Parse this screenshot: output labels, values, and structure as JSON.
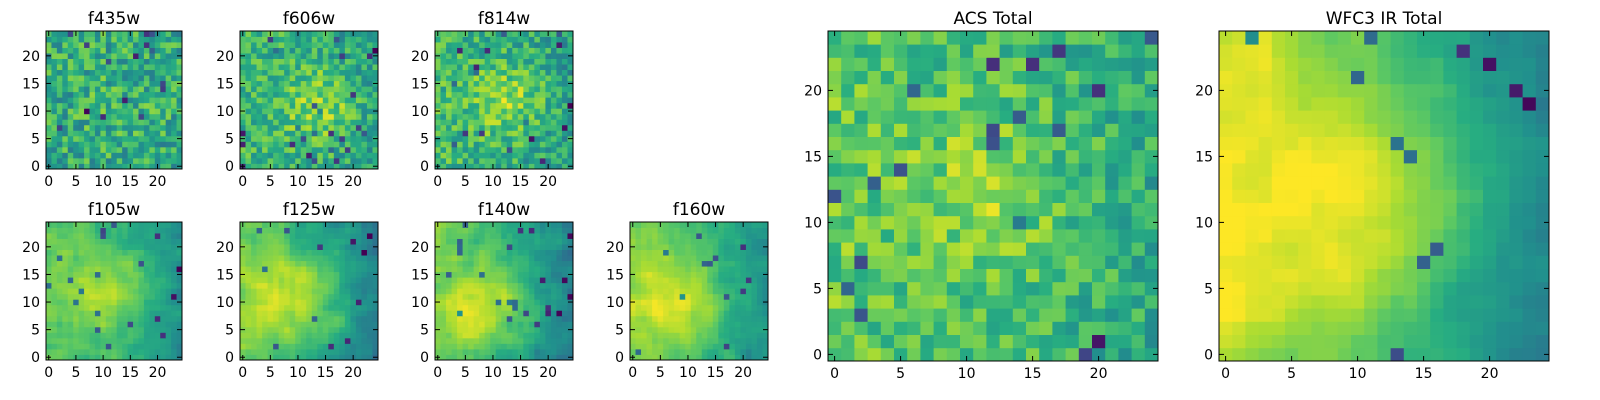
{
  "chart_data": [
    {
      "type": "heatmap",
      "title": "f435w",
      "xlim": [
        0,
        24
      ],
      "ylim": [
        0,
        24
      ],
      "xticks": [
        0,
        5,
        10,
        15,
        20
      ],
      "yticks": [
        0,
        5,
        10,
        15,
        20
      ],
      "grid": false,
      "colormap": "viridis",
      "value_range": [
        0,
        1
      ],
      "pattern": {
        "kind": "noise",
        "base": 0.6,
        "noise": 0.2,
        "cx": 12,
        "cy": 12,
        "peak": 0.05,
        "width": 8,
        "tilt_x": 0,
        "tilt_y": 0,
        "seed": 11
      }
    },
    {
      "type": "heatmap",
      "title": "f606w",
      "xlim": [
        0,
        24
      ],
      "ylim": [
        0,
        24
      ],
      "xticks": [
        0,
        5,
        10,
        15,
        20
      ],
      "yticks": [
        0,
        5,
        10,
        15,
        20
      ],
      "grid": false,
      "colormap": "viridis",
      "value_range": [
        0,
        1
      ],
      "pattern": {
        "kind": "noise",
        "base": 0.62,
        "noise": 0.17,
        "cx": 14,
        "cy": 11,
        "peak": 0.22,
        "width": 5,
        "tilt_x": -0.004,
        "tilt_y": 0,
        "seed": 23
      }
    },
    {
      "type": "heatmap",
      "title": "f814w",
      "xlim": [
        0,
        24
      ],
      "ylim": [
        0,
        24
      ],
      "xticks": [
        0,
        5,
        10,
        15,
        20
      ],
      "yticks": [
        0,
        5,
        10,
        15,
        20
      ],
      "grid": false,
      "colormap": "viridis",
      "value_range": [
        0,
        1
      ],
      "pattern": {
        "kind": "noise",
        "base": 0.62,
        "noise": 0.17,
        "cx": 13,
        "cy": 12,
        "peak": 0.22,
        "width": 5,
        "tilt_x": -0.005,
        "tilt_y": 0,
        "seed": 37
      }
    },
    {
      "type": "heatmap",
      "title": "f105w",
      "xlim": [
        0,
        24
      ],
      "ylim": [
        0,
        24
      ],
      "xticks": [
        0,
        5,
        10,
        15,
        20
      ],
      "yticks": [
        0,
        5,
        10,
        15,
        20
      ],
      "grid": false,
      "colormap": "viridis",
      "value_range": [
        0,
        1
      ],
      "pattern": {
        "kind": "smooth",
        "base": 0.62,
        "noise": 0.1,
        "cx": 12,
        "cy": 12,
        "peak": 0.25,
        "width": 6,
        "tilt_x": -0.012,
        "tilt_y": 0,
        "seed": 41
      }
    },
    {
      "type": "heatmap",
      "title": "f125w",
      "xlim": [
        0,
        24
      ],
      "ylim": [
        0,
        24
      ],
      "xticks": [
        0,
        5,
        10,
        15,
        20
      ],
      "yticks": [
        0,
        5,
        10,
        15,
        20
      ],
      "grid": false,
      "colormap": "viridis",
      "value_range": [
        0,
        1
      ],
      "pattern": {
        "kind": "smooth",
        "base": 0.62,
        "noise": 0.1,
        "cx": 10,
        "cy": 11,
        "peak": 0.25,
        "width": 6,
        "tilt_x": -0.013,
        "tilt_y": 0,
        "seed": 53
      }
    },
    {
      "type": "heatmap",
      "title": "f140w",
      "xlim": [
        0,
        24
      ],
      "ylim": [
        0,
        24
      ],
      "xticks": [
        0,
        5,
        10,
        15,
        20
      ],
      "yticks": [
        0,
        5,
        10,
        15,
        20
      ],
      "grid": false,
      "colormap": "viridis",
      "value_range": [
        0,
        1
      ],
      "pattern": {
        "kind": "smooth",
        "base": 0.62,
        "noise": 0.11,
        "cx": 9,
        "cy": 10,
        "peak": 0.25,
        "width": 6,
        "tilt_x": -0.014,
        "tilt_y": 0,
        "seed": 67
      }
    },
    {
      "type": "heatmap",
      "title": "f160w",
      "xlim": [
        0,
        24
      ],
      "ylim": [
        0,
        24
      ],
      "xticks": [
        0,
        5,
        10,
        15,
        20
      ],
      "yticks": [
        0,
        5,
        10,
        15,
        20
      ],
      "grid": false,
      "colormap": "viridis",
      "value_range": [
        0,
        1
      ],
      "pattern": {
        "kind": "smooth",
        "base": 0.66,
        "noise": 0.09,
        "cx": 9,
        "cy": 10,
        "peak": 0.25,
        "width": 6,
        "tilt_x": -0.013,
        "tilt_y": 0,
        "seed": 79
      }
    },
    {
      "type": "heatmap",
      "title": "ACS Total",
      "xlim": [
        0,
        24
      ],
      "ylim": [
        0,
        24
      ],
      "xticks": [
        0,
        5,
        10,
        15,
        20
      ],
      "yticks": [
        0,
        5,
        10,
        15,
        20
      ],
      "grid": false,
      "colormap": "viridis",
      "value_range": [
        0,
        1
      ],
      "pattern": {
        "kind": "noise",
        "base": 0.68,
        "noise": 0.15,
        "cx": 12,
        "cy": 12,
        "peak": 0.15,
        "width": 5,
        "tilt_x": -0.006,
        "tilt_y": 0,
        "seed": 89
      }
    },
    {
      "type": "heatmap",
      "title": "WFC3 IR Total",
      "xlim": [
        0,
        24
      ],
      "ylim": [
        0,
        24
      ],
      "xticks": [
        0,
        5,
        10,
        15,
        20
      ],
      "yticks": [
        0,
        5,
        10,
        15,
        20
      ],
      "grid": false,
      "colormap": "viridis",
      "value_range": [
        0,
        1
      ],
      "pattern": {
        "kind": "smooth",
        "base": 0.7,
        "noise": 0.07,
        "cx": 11,
        "cy": 12,
        "peak": 0.22,
        "width": 6,
        "tilt_x": -0.022,
        "tilt_y": 0,
        "seed": 97
      }
    }
  ]
}
